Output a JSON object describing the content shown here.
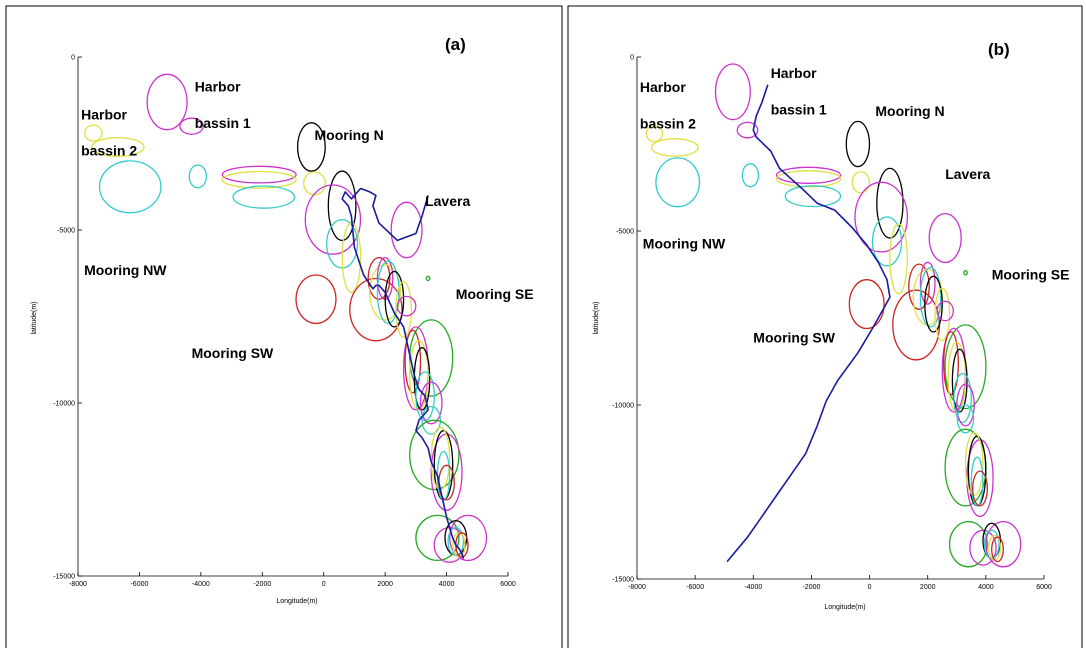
{
  "chart_data": [
    {
      "type": "scatter",
      "panel_label": "(a)",
      "xlabel": "Longitude(m)",
      "ylabel": "latitude(m)",
      "xlim": [
        -8000,
        6000
      ],
      "ylim": [
        -15000,
        0
      ],
      "xticks": [
        -8000,
        -6000,
        -4000,
        -2000,
        0,
        2000,
        4000,
        6000
      ],
      "yticks": [
        0,
        -5000,
        -10000,
        -15000
      ],
      "grid": false,
      "annotations": [
        {
          "text": "Harbor",
          "x": -4200,
          "y": -1000
        },
        {
          "text": "bassin 1",
          "x": -4200,
          "y": -2050
        },
        {
          "text": "Harbor",
          "x": -7900,
          "y": -1800
        },
        {
          "text": "bassin 2",
          "x": -7900,
          "y": -2850
        },
        {
          "text": "Mooring N",
          "x": -300,
          "y": -2400
        },
        {
          "text": "Lavera",
          "x": 3300,
          "y": -4300
        },
        {
          "text": "Mooring NW",
          "x": -7800,
          "y": -6300
        },
        {
          "text": "Mooring SE",
          "x": 4300,
          "y": -7000
        },
        {
          "text": "Mooring SW",
          "x": -4300,
          "y": -8700
        }
      ],
      "zones": [
        {
          "color": "#cc33cc",
          "cx": -5100,
          "cy": -1300,
          "rx": 650,
          "ry": 800
        },
        {
          "color": "#cc33cc",
          "cx": -4300,
          "cy": -2000,
          "rx": 380,
          "ry": 230
        },
        {
          "color": "#e0e040",
          "cx": -7500,
          "cy": -2200,
          "rx": 280,
          "ry": 230
        },
        {
          "color": "#e0e040",
          "cx": -6700,
          "cy": -2600,
          "rx": 850,
          "ry": 270
        },
        {
          "color": "#33cccc",
          "cx": -6300,
          "cy": -3750,
          "rx": 1000,
          "ry": 750
        },
        {
          "color": "#33cccc",
          "cx": -4100,
          "cy": -3450,
          "rx": 280,
          "ry": 330
        },
        {
          "color": "#cc33cc",
          "cx": -2100,
          "cy": -3400,
          "rx": 1200,
          "ry": 240
        },
        {
          "color": "#e0e040",
          "cx": -2100,
          "cy": -3550,
          "rx": 1200,
          "ry": 240
        },
        {
          "color": "#33cccc",
          "cx": -1950,
          "cy": -4050,
          "rx": 1000,
          "ry": 320
        },
        {
          "color": "#000000",
          "cx": -400,
          "cy": -2600,
          "rx": 450,
          "ry": 700
        },
        {
          "color": "#e0e040",
          "cx": -300,
          "cy": -3650,
          "rx": 350,
          "ry": 330
        },
        {
          "color": "#000000",
          "cx": 600,
          "cy": -4300,
          "rx": 450,
          "ry": 1000
        },
        {
          "color": "#cc33cc",
          "cx": 300,
          "cy": -4700,
          "rx": 900,
          "ry": 1000
        },
        {
          "color": "#33cccc",
          "cx": 600,
          "cy": -5400,
          "rx": 500,
          "ry": 700
        },
        {
          "color": "#e0e040",
          "cx": 900,
          "cy": -5800,
          "rx": 300,
          "ry": 1000
        },
        {
          "color": "#cc33cc",
          "cx": 2700,
          "cy": -5000,
          "rx": 500,
          "ry": 800
        },
        {
          "color": "#22aa22",
          "cx": 3400,
          "cy": -6400,
          "rx": 60,
          "ry": 60
        },
        {
          "color": "#cc2222",
          "cx": -250,
          "cy": -7000,
          "rx": 650,
          "ry": 700
        },
        {
          "color": "#cc2222",
          "cx": 1700,
          "cy": -7300,
          "rx": 850,
          "ry": 900
        },
        {
          "color": "#cc2222",
          "cx": 1800,
          "cy": -6400,
          "rx": 350,
          "ry": 600
        },
        {
          "color": "#e0e040",
          "cx": 2000,
          "cy": -6800,
          "rx": 500,
          "ry": 800
        },
        {
          "color": "#cc33cc",
          "cx": 2000,
          "cy": -6400,
          "rx": 250,
          "ry": 600
        },
        {
          "color": "#33cccc",
          "cx": 2100,
          "cy": -6800,
          "rx": 350,
          "ry": 900
        },
        {
          "color": "#000000",
          "cx": 2300,
          "cy": -7000,
          "rx": 300,
          "ry": 800
        },
        {
          "color": "#e0e040",
          "cx": 2600,
          "cy": -7300,
          "rx": 250,
          "ry": 800
        },
        {
          "color": "#cc33cc",
          "cx": 2700,
          "cy": -7200,
          "rx": 300,
          "ry": 280
        },
        {
          "color": "#22aa22",
          "cx": 3500,
          "cy": -8700,
          "rx": 700,
          "ry": 1100
        },
        {
          "color": "#cc33cc",
          "cx": 3000,
          "cy": -9000,
          "rx": 400,
          "ry": 1200
        },
        {
          "color": "#cc2222",
          "cx": 2900,
          "cy": -8800,
          "rx": 250,
          "ry": 900
        },
        {
          "color": "#e0e040",
          "cx": 3100,
          "cy": -9200,
          "rx": 300,
          "ry": 1000
        },
        {
          "color": "#000000",
          "cx": 3200,
          "cy": -9300,
          "rx": 250,
          "ry": 900
        },
        {
          "color": "#33cccc",
          "cx": 3300,
          "cy": -9800,
          "rx": 300,
          "ry": 700
        },
        {
          "color": "#cc33cc",
          "cx": 3500,
          "cy": -10000,
          "rx": 350,
          "ry": 600
        },
        {
          "color": "#33cccc",
          "cx": 3500,
          "cy": -10500,
          "rx": 300,
          "ry": 400
        },
        {
          "color": "#22aa22",
          "cx": 3600,
          "cy": -11500,
          "rx": 800,
          "ry": 1000
        },
        {
          "color": "#cc33cc",
          "cx": 4000,
          "cy": -12000,
          "rx": 500,
          "ry": 1100
        },
        {
          "color": "#000000",
          "cx": 3900,
          "cy": -11800,
          "rx": 300,
          "ry": 1000
        },
        {
          "color": "#e0e040",
          "cx": 3800,
          "cy": -11600,
          "rx": 300,
          "ry": 900
        },
        {
          "color": "#33cccc",
          "cx": 3900,
          "cy": -12100,
          "rx": 200,
          "ry": 700
        },
        {
          "color": "#cc2222",
          "cx": 4000,
          "cy": -12300,
          "rx": 250,
          "ry": 500
        },
        {
          "color": "#22aa22",
          "cx": 3700,
          "cy": -13900,
          "rx": 700,
          "ry": 650
        },
        {
          "color": "#cc33cc",
          "cx": 4700,
          "cy": -13900,
          "rx": 600,
          "ry": 650
        },
        {
          "color": "#cc33cc",
          "cx": 4100,
          "cy": -14100,
          "rx": 500,
          "ry": 500
        },
        {
          "color": "#000000",
          "cx": 4300,
          "cy": -13900,
          "rx": 350,
          "ry": 500
        },
        {
          "color": "#33cccc",
          "cx": 4300,
          "cy": -14000,
          "rx": 250,
          "ry": 400
        },
        {
          "color": "#e0e040",
          "cx": 4400,
          "cy": -14100,
          "rx": 200,
          "ry": 350
        },
        {
          "color": "#cc2222",
          "cx": 4500,
          "cy": -14100,
          "rx": 200,
          "ry": 350
        }
      ],
      "track": {
        "color": "#1a1aa0",
        "x": [
          3400,
          3200,
          3000,
          2400,
          1800,
          1600,
          1700,
          1500,
          1200,
          900,
          700,
          600,
          800,
          900,
          1000,
          1300,
          1600,
          1700,
          1800,
          2000,
          2300,
          2600,
          2800,
          2950,
          3100,
          3300,
          3400,
          3300,
          3100,
          3000,
          3200,
          3400,
          3500,
          3700,
          3800,
          3900,
          4000,
          4100,
          4200,
          4300,
          4400,
          4500,
          4550
        ],
        "y": [
          -4000,
          -4600,
          -5100,
          -5300,
          -4800,
          -4300,
          -4000,
          -3900,
          -3800,
          -4100,
          -3900,
          -4100,
          -4300,
          -4600,
          -5500,
          -6300,
          -6700,
          -6600,
          -6600,
          -6800,
          -7400,
          -7800,
          -8600,
          -9200,
          -9600,
          -9800,
          -10200,
          -10300,
          -10500,
          -10800,
          -11000,
          -11300,
          -11700,
          -12100,
          -12500,
          -12900,
          -13300,
          -13600,
          -13900,
          -14100,
          -14200,
          -14350,
          -14500
        ]
      }
    },
    {
      "type": "scatter",
      "panel_label": "(b)",
      "xlabel": "Longitude(m)",
      "ylabel": "latitude(m)",
      "xlim": [
        -8000,
        6000
      ],
      "ylim": [
        -15000,
        0
      ],
      "xticks": [
        -8000,
        -6000,
        -4000,
        -2000,
        0,
        2000,
        4000,
        6000
      ],
      "yticks": [
        0,
        -5000,
        -10000,
        -15000
      ],
      "grid": false,
      "annotations": [
        {
          "text": "Harbor",
          "x": -3400,
          "y": -600
        },
        {
          "text": "bassin 1",
          "x": -3400,
          "y": -1650
        },
        {
          "text": "Harbor",
          "x": -7900,
          "y": -1000
        },
        {
          "text": "bassin 2",
          "x": -7900,
          "y": -2050
        },
        {
          "text": "Mooring N",
          "x": 200,
          "y": -1700
        },
        {
          "text": "Lavera",
          "x": 2600,
          "y": -3500
        },
        {
          "text": "Mooring NW",
          "x": -7800,
          "y": -5500
        },
        {
          "text": "Mooring SE",
          "x": 4200,
          "y": -6400
        },
        {
          "text": "Mooring SW",
          "x": -4000,
          "y": -8200
        }
      ],
      "zones": [
        {
          "color": "#cc33cc",
          "cx": -4700,
          "cy": -1000,
          "rx": 600,
          "ry": 800
        },
        {
          "color": "#cc33cc",
          "cx": -4200,
          "cy": -2100,
          "rx": 350,
          "ry": 220
        },
        {
          "color": "#e0e040",
          "cx": -7400,
          "cy": -2200,
          "rx": 280,
          "ry": 230
        },
        {
          "color": "#e0e040",
          "cx": -6700,
          "cy": -2600,
          "rx": 800,
          "ry": 250
        },
        {
          "color": "#33cccc",
          "cx": -6600,
          "cy": -3600,
          "rx": 750,
          "ry": 700
        },
        {
          "color": "#33cccc",
          "cx": -4100,
          "cy": -3400,
          "rx": 280,
          "ry": 330
        },
        {
          "color": "#cc33cc",
          "cx": -2100,
          "cy": -3400,
          "rx": 1100,
          "ry": 230
        },
        {
          "color": "#e0e040",
          "cx": -2100,
          "cy": -3500,
          "rx": 1100,
          "ry": 230
        },
        {
          "color": "#33cccc",
          "cx": -1950,
          "cy": -4000,
          "rx": 950,
          "ry": 300
        },
        {
          "color": "#000000",
          "cx": -400,
          "cy": -2500,
          "rx": 400,
          "ry": 650
        },
        {
          "color": "#e0e040",
          "cx": -300,
          "cy": -3600,
          "rx": 300,
          "ry": 300
        },
        {
          "color": "#000000",
          "cx": 700,
          "cy": -4200,
          "rx": 450,
          "ry": 1000
        },
        {
          "color": "#cc33cc",
          "cx": 400,
          "cy": -4600,
          "rx": 900,
          "ry": 1000
        },
        {
          "color": "#33cccc",
          "cx": 600,
          "cy": -5300,
          "rx": 500,
          "ry": 700
        },
        {
          "color": "#e0e040",
          "cx": 1000,
          "cy": -5800,
          "rx": 300,
          "ry": 1000
        },
        {
          "color": "#cc33cc",
          "cx": 2600,
          "cy": -5200,
          "rx": 550,
          "ry": 700
        },
        {
          "color": "#22aa22",
          "cx": 3300,
          "cy": -6200,
          "rx": 60,
          "ry": 60
        },
        {
          "color": "#cc2222",
          "cx": -100,
          "cy": -7100,
          "rx": 600,
          "ry": 700
        },
        {
          "color": "#cc2222",
          "cx": 1600,
          "cy": -7700,
          "rx": 800,
          "ry": 1000
        },
        {
          "color": "#cc2222",
          "cx": 1700,
          "cy": -6600,
          "rx": 350,
          "ry": 650
        },
        {
          "color": "#e0e040",
          "cx": 2000,
          "cy": -6900,
          "rx": 500,
          "ry": 800
        },
        {
          "color": "#cc33cc",
          "cx": 2000,
          "cy": -6500,
          "rx": 250,
          "ry": 600
        },
        {
          "color": "#33cccc",
          "cx": 2100,
          "cy": -6900,
          "rx": 350,
          "ry": 850
        },
        {
          "color": "#000000",
          "cx": 2200,
          "cy": -7100,
          "rx": 300,
          "ry": 800
        },
        {
          "color": "#e0e040",
          "cx": 2500,
          "cy": -7400,
          "rx": 250,
          "ry": 750
        },
        {
          "color": "#cc33cc",
          "cx": 2600,
          "cy": -7300,
          "rx": 280,
          "ry": 280
        },
        {
          "color": "#22aa22",
          "cx": 3300,
          "cy": -8900,
          "rx": 700,
          "ry": 1200
        },
        {
          "color": "#cc33cc",
          "cx": 2900,
          "cy": -9000,
          "rx": 400,
          "ry": 1200
        },
        {
          "color": "#cc2222",
          "cx": 2800,
          "cy": -8800,
          "rx": 250,
          "ry": 900
        },
        {
          "color": "#e0e040",
          "cx": 3000,
          "cy": -9200,
          "rx": 300,
          "ry": 1000
        },
        {
          "color": "#000000",
          "cx": 3100,
          "cy": -9300,
          "rx": 250,
          "ry": 900
        },
        {
          "color": "#33cccc",
          "cx": 3200,
          "cy": -9800,
          "rx": 300,
          "ry": 700
        },
        {
          "color": "#cc33cc",
          "cx": 3300,
          "cy": -10000,
          "rx": 300,
          "ry": 600
        },
        {
          "color": "#33cccc",
          "cx": 3300,
          "cy": -10400,
          "rx": 280,
          "ry": 400
        },
        {
          "color": "#22aa22",
          "cx": 3300,
          "cy": -11800,
          "rx": 700,
          "ry": 1100
        },
        {
          "color": "#cc33cc",
          "cx": 3800,
          "cy": -12100,
          "rx": 450,
          "ry": 1100
        },
        {
          "color": "#000000",
          "cx": 3700,
          "cy": -11900,
          "rx": 300,
          "ry": 1000
        },
        {
          "color": "#e0e040",
          "cx": 3600,
          "cy": -11700,
          "rx": 300,
          "ry": 900
        },
        {
          "color": "#33cccc",
          "cx": 3700,
          "cy": -12200,
          "rx": 200,
          "ry": 700
        },
        {
          "color": "#cc2222",
          "cx": 3800,
          "cy": -12400,
          "rx": 250,
          "ry": 500
        },
        {
          "color": "#22aa22",
          "cx": 3400,
          "cy": -14000,
          "rx": 650,
          "ry": 650
        },
        {
          "color": "#cc33cc",
          "cx": 4600,
          "cy": -14000,
          "rx": 600,
          "ry": 650
        },
        {
          "color": "#cc33cc",
          "cx": 3900,
          "cy": -14100,
          "rx": 450,
          "ry": 500
        },
        {
          "color": "#000000",
          "cx": 4200,
          "cy": -13900,
          "rx": 300,
          "ry": 500
        },
        {
          "color": "#33cccc",
          "cx": 4200,
          "cy": -14000,
          "rx": 250,
          "ry": 400
        },
        {
          "color": "#e0e040",
          "cx": 4300,
          "cy": -14100,
          "rx": 200,
          "ry": 350
        },
        {
          "color": "#cc2222",
          "cx": 4400,
          "cy": -14150,
          "rx": 200,
          "ry": 350
        }
      ],
      "track": {
        "color": "#1a1aa0",
        "x": [
          -3500,
          -3700,
          -3900,
          -4000,
          -3900,
          -3400,
          -3100,
          -2700,
          -2300,
          -1800,
          -1200,
          -600,
          -100,
          300,
          600,
          700,
          500,
          100,
          -400,
          -1100,
          -1500,
          -1800,
          -2200,
          -2700,
          -3200,
          -3700,
          -4200,
          -4700,
          -4900
        ],
        "y": [
          -800,
          -1300,
          -1700,
          -2100,
          -2300,
          -2700,
          -3200,
          -3500,
          -3800,
          -4200,
          -4400,
          -4900,
          -5400,
          -5900,
          -6400,
          -6900,
          -7200,
          -7800,
          -8500,
          -9300,
          -9900,
          -10600,
          -11400,
          -12000,
          -12600,
          -13200,
          -13800,
          -14300,
          -14500
        ]
      }
    }
  ]
}
